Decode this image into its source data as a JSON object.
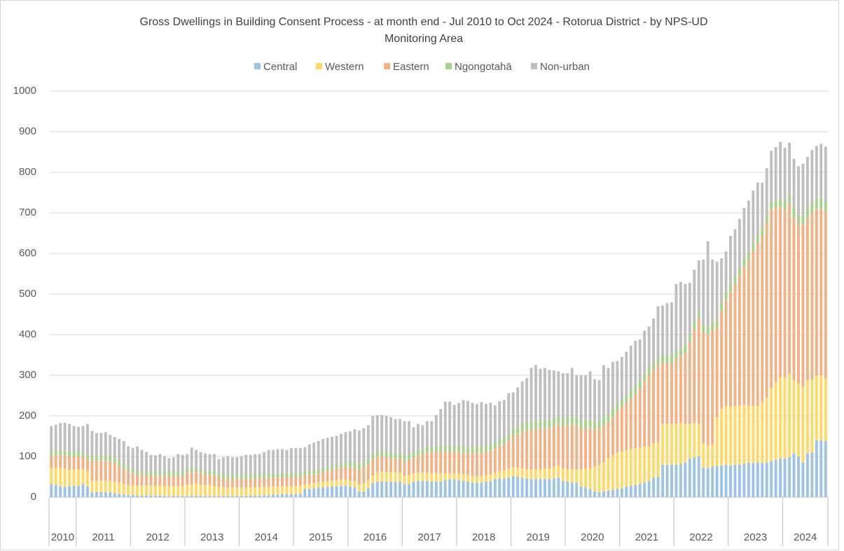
{
  "chart_data": {
    "type": "stacked_bar",
    "title": "Gross Dwellings in Building Consent Process - at month end - Jul 2010 to Oct 2024 - Rotorua District - by NPS-UD",
    "title_line_2": "Monitoring Area",
    "categories": [
      "2010",
      "2010",
      "2010",
      "2010",
      "2010",
      "2010",
      "2011",
      "2011",
      "2011",
      "2011",
      "2011",
      "2011",
      "2011",
      "2011",
      "2011",
      "2011",
      "2011",
      "2011",
      "2012",
      "2012",
      "2012",
      "2012",
      "2012",
      "2012",
      "2012",
      "2012",
      "2012",
      "2012",
      "2012",
      "2012",
      "2013",
      "2013",
      "2013",
      "2013",
      "2013",
      "2013",
      "2013",
      "2013",
      "2013",
      "2013",
      "2013",
      "2013",
      "2014",
      "2014",
      "2014",
      "2014",
      "2014",
      "2014",
      "2014",
      "2014",
      "2014",
      "2014",
      "2014",
      "2014",
      "2015",
      "2015",
      "2015",
      "2015",
      "2015",
      "2015",
      "2015",
      "2015",
      "2015",
      "2015",
      "2015",
      "2015",
      "2016",
      "2016",
      "2016",
      "2016",
      "2016",
      "2016",
      "2016",
      "2016",
      "2016",
      "2016",
      "2016",
      "2016",
      "2017",
      "2017",
      "2017",
      "2017",
      "2017",
      "2017",
      "2017",
      "2017",
      "2017",
      "2017",
      "2017",
      "2017",
      "2018",
      "2018",
      "2018",
      "2018",
      "2018",
      "2018",
      "2018",
      "2018",
      "2018",
      "2018",
      "2018",
      "2018",
      "2019",
      "2019",
      "2019",
      "2019",
      "2019",
      "2019",
      "2019",
      "2019",
      "2019",
      "2019",
      "2019",
      "2019",
      "2020",
      "2020",
      "2020",
      "2020",
      "2020",
      "2020",
      "2020",
      "2020",
      "2020",
      "2020",
      "2020",
      "2020",
      "2021",
      "2021",
      "2021",
      "2021",
      "2021",
      "2021",
      "2021",
      "2021",
      "2021",
      "2021",
      "2021",
      "2021",
      "2022",
      "2022",
      "2022",
      "2022",
      "2022",
      "2022",
      "2022",
      "2022",
      "2022",
      "2022",
      "2022",
      "2022",
      "2023",
      "2023",
      "2023",
      "2023",
      "2023",
      "2023",
      "2023",
      "2023",
      "2023",
      "2023",
      "2023",
      "2023",
      "2024",
      "2024",
      "2024",
      "2024",
      "2024",
      "2024",
      "2024",
      "2024",
      "2024",
      "2024"
    ],
    "series": [
      {
        "name": "Central",
        "color": "#9dc3e6",
        "values": [
          32,
          30,
          26,
          25,
          27,
          28,
          28,
          32,
          26,
          12,
          12,
          12,
          12,
          12,
          10,
          8,
          6,
          5,
          5,
          4,
          4,
          4,
          4,
          4,
          4,
          3,
          3,
          3,
          3,
          3,
          3,
          3,
          3,
          3,
          3,
          3,
          3,
          3,
          3,
          3,
          3,
          3,
          3,
          3,
          4,
          4,
          4,
          5,
          5,
          6,
          6,
          7,
          7,
          7,
          7,
          8,
          20,
          20,
          22,
          24,
          24,
          25,
          26,
          27,
          28,
          28,
          26,
          24,
          14,
          14,
          22,
          35,
          38,
          38,
          38,
          38,
          37,
          38,
          32,
          32,
          38,
          40,
          40,
          40,
          38,
          38,
          38,
          42,
          44,
          44,
          42,
          40,
          38,
          36,
          36,
          36,
          38,
          40,
          44,
          46,
          46,
          48,
          52,
          50,
          48,
          46,
          44,
          44,
          44,
          44,
          44,
          46,
          48,
          40,
          38,
          36,
          36,
          26,
          24,
          20,
          14,
          12,
          14,
          16,
          18,
          20,
          22,
          26,
          28,
          30,
          32,
          36,
          40,
          48,
          50,
          80,
          80,
          80,
          80,
          82,
          85,
          95,
          98,
          100,
          72,
          72,
          75,
          76,
          78,
          80,
          78,
          80,
          80,
          82,
          85,
          85,
          85,
          84,
          85,
          88,
          92,
          95,
          95,
          98,
          108,
          100,
          86,
          108,
          110,
          140,
          140,
          138
        ]
      },
      {
        "name": "Western",
        "color": "#ffd966",
        "values": [
          40,
          42,
          45,
          45,
          40,
          40,
          40,
          38,
          38,
          28,
          28,
          28,
          28,
          28,
          28,
          28,
          26,
          24,
          24,
          24,
          24,
          24,
          24,
          24,
          24,
          24,
          24,
          24,
          24,
          24,
          28,
          28,
          30,
          28,
          26,
          26,
          24,
          22,
          22,
          20,
          20,
          20,
          20,
          20,
          20,
          20,
          20,
          20,
          20,
          20,
          20,
          20,
          20,
          20,
          20,
          20,
          12,
          12,
          12,
          12,
          14,
          14,
          14,
          14,
          14,
          15,
          15,
          15,
          18,
          20,
          20,
          18,
          22,
          24,
          24,
          24,
          24,
          22,
          20,
          22,
          20,
          20,
          20,
          20,
          20,
          20,
          20,
          16,
          14,
          14,
          16,
          16,
          16,
          16,
          16,
          16,
          16,
          16,
          16,
          18,
          20,
          22,
          22,
          22,
          22,
          22,
          24,
          24,
          24,
          26,
          26,
          28,
          30,
          30,
          30,
          32,
          32,
          42,
          46,
          50,
          62,
          68,
          72,
          80,
          85,
          90,
          90,
          90,
          90,
          90,
          90,
          88,
          85,
          85,
          85,
          100,
          100,
          100,
          100,
          100,
          95,
          85,
          85,
          80,
          60,
          55,
          55,
          120,
          140,
          145,
          145,
          145,
          145,
          145,
          140,
          140,
          140,
          150,
          160,
          180,
          190,
          200,
          200,
          205,
          180,
          180,
          185,
          180,
          180,
          160,
          160,
          155
        ]
      },
      {
        "name": "Eastern",
        "color": "#f4b183",
        "values": [
          30,
          32,
          32,
          33,
          33,
          32,
          32,
          30,
          28,
          50,
          50,
          50,
          50,
          48,
          45,
          40,
          38,
          35,
          30,
          28,
          26,
          25,
          25,
          25,
          25,
          25,
          25,
          25,
          25,
          25,
          30,
          30,
          30,
          28,
          26,
          26,
          26,
          24,
          22,
          22,
          22,
          22,
          22,
          22,
          22,
          22,
          22,
          22,
          22,
          22,
          22,
          22,
          22,
          22,
          22,
          22,
          22,
          22,
          22,
          22,
          24,
          26,
          28,
          30,
          32,
          32,
          32,
          32,
          36,
          38,
          38,
          38,
          38,
          38,
          36,
          34,
          34,
          34,
          36,
          38,
          40,
          42,
          46,
          50,
          52,
          54,
          54,
          54,
          54,
          54,
          54,
          54,
          54,
          56,
          56,
          56,
          58,
          60,
          60,
          62,
          64,
          70,
          76,
          82,
          90,
          96,
          100,
          100,
          100,
          100,
          100,
          100,
          100,
          105,
          110,
          110,
          110,
          100,
          100,
          100,
          90,
          90,
          90,
          90,
          95,
          100,
          110,
          115,
          125,
          135,
          145,
          160,
          175,
          180,
          190,
          150,
          150,
          150,
          160,
          165,
          175,
          200,
          230,
          260,
          270,
          275,
          280,
          220,
          240,
          260,
          280,
          300,
          320,
          340,
          360,
          380,
          400,
          410,
          430,
          440,
          430,
          420,
          410,
          420,
          400,
          390,
          400,
          400,
          410,
          410,
          410,
          410
        ]
      },
      {
        "name": "Ngongotahā",
        "color": "#a9d18e",
        "values": [
          12,
          12,
          12,
          12,
          12,
          12,
          12,
          12,
          12,
          12,
          12,
          12,
          12,
          12,
          12,
          12,
          12,
          12,
          10,
          10,
          10,
          10,
          10,
          10,
          10,
          10,
          10,
          10,
          10,
          10,
          10,
          10,
          10,
          10,
          10,
          10,
          10,
          10,
          10,
          10,
          10,
          10,
          10,
          10,
          10,
          10,
          10,
          10,
          10,
          10,
          10,
          10,
          10,
          10,
          10,
          10,
          10,
          10,
          10,
          10,
          10,
          10,
          10,
          10,
          10,
          10,
          14,
          14,
          14,
          14,
          14,
          14,
          14,
          14,
          14,
          14,
          14,
          14,
          14,
          14,
          14,
          14,
          14,
          14,
          14,
          14,
          14,
          14,
          14,
          14,
          16,
          16,
          16,
          16,
          16,
          16,
          16,
          16,
          16,
          16,
          16,
          16,
          20,
          20,
          20,
          20,
          20,
          20,
          20,
          20,
          20,
          20,
          20,
          20,
          20,
          20,
          20,
          20,
          20,
          20,
          20,
          20,
          20,
          20,
          20,
          20,
          20,
          20,
          20,
          20,
          20,
          20,
          20,
          20,
          20,
          20,
          20,
          20,
          20,
          20,
          20,
          20,
          20,
          20,
          20,
          20,
          20,
          20,
          20,
          20,
          20,
          20,
          20,
          20,
          20,
          20,
          20,
          20,
          20,
          20,
          20,
          20,
          25,
          25,
          25,
          25,
          25,
          25,
          25,
          25,
          25,
          25
        ]
      },
      {
        "name": "Non-urban",
        "color": "#bfbfbf",
        "values": [
          61,
          62,
          67,
          68,
          68,
          63,
          61,
          63,
          76,
          61,
          56,
          56,
          58,
          53,
          53,
          55,
          56,
          49,
          52,
          59,
          52,
          48,
          41,
          40,
          43,
          39,
          34,
          36,
          44,
          42,
          35,
          51,
          43,
          42,
          43,
          41,
          43,
          35,
          41,
          46,
          43,
          43,
          46,
          49,
          48,
          50,
          50,
          54,
          59,
          58,
          60,
          59,
          57,
          62,
          62,
          61,
          59,
          66,
          68,
          70,
          71,
          71,
          70,
          70,
          72,
          75,
          75,
          82,
          82,
          84,
          83,
          95,
          90,
          88,
          88,
          87,
          83,
          84,
          85,
          81,
          60,
          64,
          57,
          63,
          63,
          76,
          91,
          109,
          109,
          101,
          104,
          113,
          113,
          108,
          105,
          110,
          102,
          100,
          90,
          94,
          93,
          100,
          88,
          96,
          105,
          109,
          130,
          137,
          128,
          128,
          123,
          118,
          112,
          110,
          107,
          120,
          102,
          112,
          110,
          120,
          104,
          98,
          129,
          112,
          115,
          105,
          103,
          107,
          110,
          110,
          101,
          106,
          100,
          107,
          125,
          122,
          128,
          130,
          165,
          163,
          150,
          128,
          127,
          123,
          163,
          208,
          155,
          144,
          110,
          100,
          120,
          115,
          120,
          125,
          125,
          130,
          130,
          110,
          115,
          125,
          130,
          140,
          130,
          125,
          120,
          120,
          125,
          125,
          130,
          130,
          135,
          135
        ]
      }
    ],
    "ylim": [
      0,
      1000
    ],
    "yticks": [
      0,
      100,
      200,
      300,
      400,
      500,
      600,
      700,
      800,
      900,
      1000
    ],
    "grid": true,
    "legend": "top"
  }
}
